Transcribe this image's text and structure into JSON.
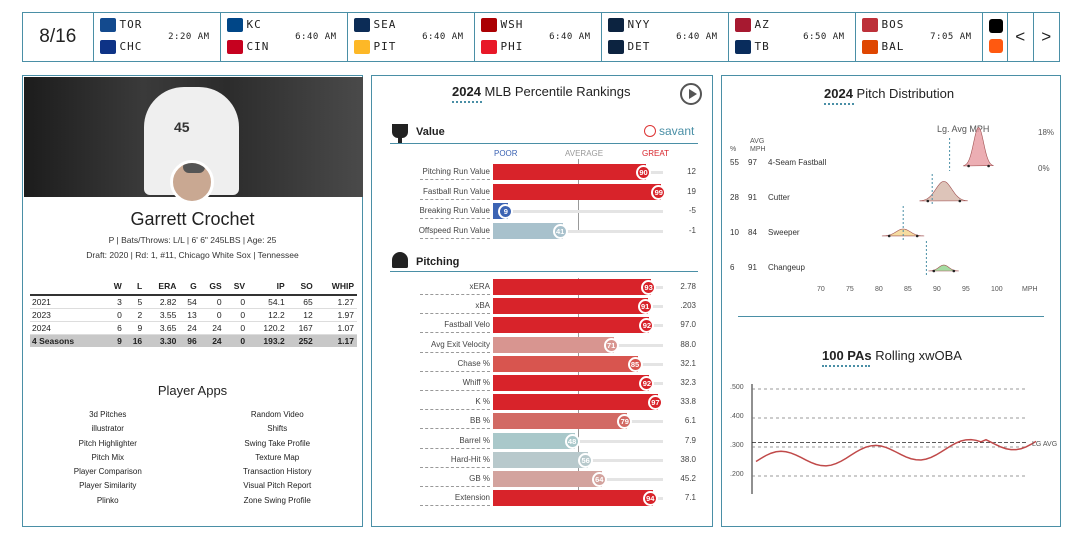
{
  "scoreboard": {
    "date": "8/16",
    "games": [
      {
        "away": "TOR",
        "home": "CHC",
        "time": "2:20 AM",
        "away_color": "#134a8e",
        "home_color": "#0e3386"
      },
      {
        "away": "KC",
        "home": "CIN",
        "time": "6:40 AM",
        "away_color": "#004687",
        "home_color": "#c6011f"
      },
      {
        "away": "SEA",
        "home": "PIT",
        "time": "6:40 AM",
        "away_color": "#0c2c56",
        "home_color": "#fdb827"
      },
      {
        "away": "WSH",
        "home": "PHI",
        "time": "6:40 AM",
        "away_color": "#ab0003",
        "home_color": "#e81828"
      },
      {
        "away": "NYY",
        "home": "DET",
        "time": "6:40 AM",
        "away_color": "#0c2340",
        "home_color": "#0c2340"
      },
      {
        "away": "AZ",
        "home": "TB",
        "time": "6:50 AM",
        "away_color": "#a71930",
        "home_color": "#092c5c"
      },
      {
        "away": "BOS",
        "home": "BAL",
        "time": "7:05 AM",
        "away_color": "#bd3039",
        "home_color": "#df4601"
      }
    ],
    "prev_icon": "chevron-left-icon",
    "next_icon": "chevron-right-icon"
  },
  "player": {
    "name": "Garrett Crochet",
    "info": "P | Bats/Throws: L/L | 6' 6\" 245LBS | Age: 25",
    "draft": "Draft: 2020 | Rd: 1, #11, Chicago White Sox | Tennessee",
    "jersey": "45",
    "stats_headers": [
      "",
      "W",
      "L",
      "ERA",
      "G",
      "GS",
      "SV",
      "IP",
      "SO",
      "WHIP"
    ],
    "stats_rows": [
      [
        "2021",
        "3",
        "5",
        "2.82",
        "54",
        "0",
        "0",
        "54.1",
        "65",
        "1.27"
      ],
      [
        "2023",
        "0",
        "2",
        "3.55",
        "13",
        "0",
        "0",
        "12.2",
        "12",
        "1.97"
      ],
      [
        "2024",
        "6",
        "9",
        "3.65",
        "24",
        "24",
        "0",
        "120.2",
        "167",
        "1.07"
      ],
      [
        "4 Seasons",
        "9",
        "16",
        "3.30",
        "96",
        "24",
        "0",
        "193.2",
        "252",
        "1.17"
      ]
    ],
    "apps_title": "Player Apps",
    "apps_left": [
      "3d Pitches",
      "illustrator",
      "Pitch Highlighter",
      "Pitch Mix",
      "Player Comparison",
      "Player Similarity",
      "Plinko"
    ],
    "apps_right": [
      "Random Video",
      "Shifts",
      "Swing Take Profile",
      "Texture Map",
      "Transaction History",
      "Visual Pitch Report",
      "Zone Swing Profile"
    ]
  },
  "rankings": {
    "title_year": "2024",
    "title_rest": "MLB Percentile Rankings",
    "brand": "savant",
    "scale": {
      "poor": "POOR",
      "average": "AVERAGE",
      "great": "GREAT"
    },
    "value_section": "Value",
    "value_rows": [
      {
        "label": "Pitching Run Value",
        "pct": 90,
        "value": "12",
        "color": "#d8232a"
      },
      {
        "label": "Fastball Run Value",
        "pct": 99,
        "value": "19",
        "color": "#d8232a"
      },
      {
        "label": "Breaking Run Value",
        "pct": 9,
        "value": "-5",
        "color": "#3c64b4"
      },
      {
        "label": "Offspeed Run Value",
        "pct": 41,
        "value": "-1",
        "color": "#a8c1cc"
      }
    ],
    "pitching_section": "Pitching",
    "pitching_rows": [
      {
        "label": "xERA",
        "pct": 93,
        "value": "2.78",
        "color": "#d8232a"
      },
      {
        "label": "xBA",
        "pct": 91,
        "value": ".203",
        "color": "#d8232a"
      },
      {
        "label": "Fastball Velo",
        "pct": 92,
        "value": "97.0",
        "color": "#d8232a"
      },
      {
        "label": "Avg Exit Velocity",
        "pct": 71,
        "value": "88.0",
        "color": "#d89590"
      },
      {
        "label": "Chase %",
        "pct": 85,
        "value": "32.1",
        "color": "#d8554f"
      },
      {
        "label": "Whiff %",
        "pct": 92,
        "value": "32.3",
        "color": "#d8232a"
      },
      {
        "label": "K %",
        "pct": 97,
        "value": "33.8",
        "color": "#d8232a"
      },
      {
        "label": "BB %",
        "pct": 79,
        "value": "6.1",
        "color": "#d26a64"
      },
      {
        "label": "Barrel %",
        "pct": 48,
        "value": "7.9",
        "color": "#a9c8ca"
      },
      {
        "label": "Hard-Hit %",
        "pct": 56,
        "value": "38.0",
        "color": "#b8c9cc"
      },
      {
        "label": "GB %",
        "pct": 64,
        "value": "45.2",
        "color": "#d3a39e"
      },
      {
        "label": "Extension",
        "pct": 94,
        "value": "7.1",
        "color": "#d8232a"
      }
    ]
  },
  "distribution": {
    "title_year": "2024",
    "title_rest": "Pitch Distribution",
    "lg_avg_label": "Lg. Avg MPH",
    "col_pct": "%",
    "col_avg": "AVG",
    "col_mph": "MPH",
    "pct_max": "18%",
    "pct_min": "0%",
    "pitches": [
      {
        "pct": "55",
        "mph": "97",
        "name": "4-Seam Fastball",
        "color": "#e79aa0"
      },
      {
        "pct": "28",
        "mph": "91",
        "name": "Cutter",
        "color": "#d4b5a8"
      },
      {
        "pct": "10",
        "mph": "84",
        "name": "Sweeper",
        "color": "#f3d38a"
      },
      {
        "pct": "6",
        "mph": "91",
        "name": "Changeup",
        "color": "#8fd38b"
      }
    ],
    "x_ticks": [
      "70",
      "75",
      "80",
      "85",
      "90",
      "95",
      "100"
    ],
    "x_unit": "MPH"
  },
  "xwoba": {
    "title_bold": "100 PAs",
    "title_rest": "Rolling xwOBA",
    "y_ticks": [
      ".500",
      ".400",
      ".300",
      ".200"
    ],
    "lg_label": "LG AVG",
    "lg_value": 0.315
  }
}
